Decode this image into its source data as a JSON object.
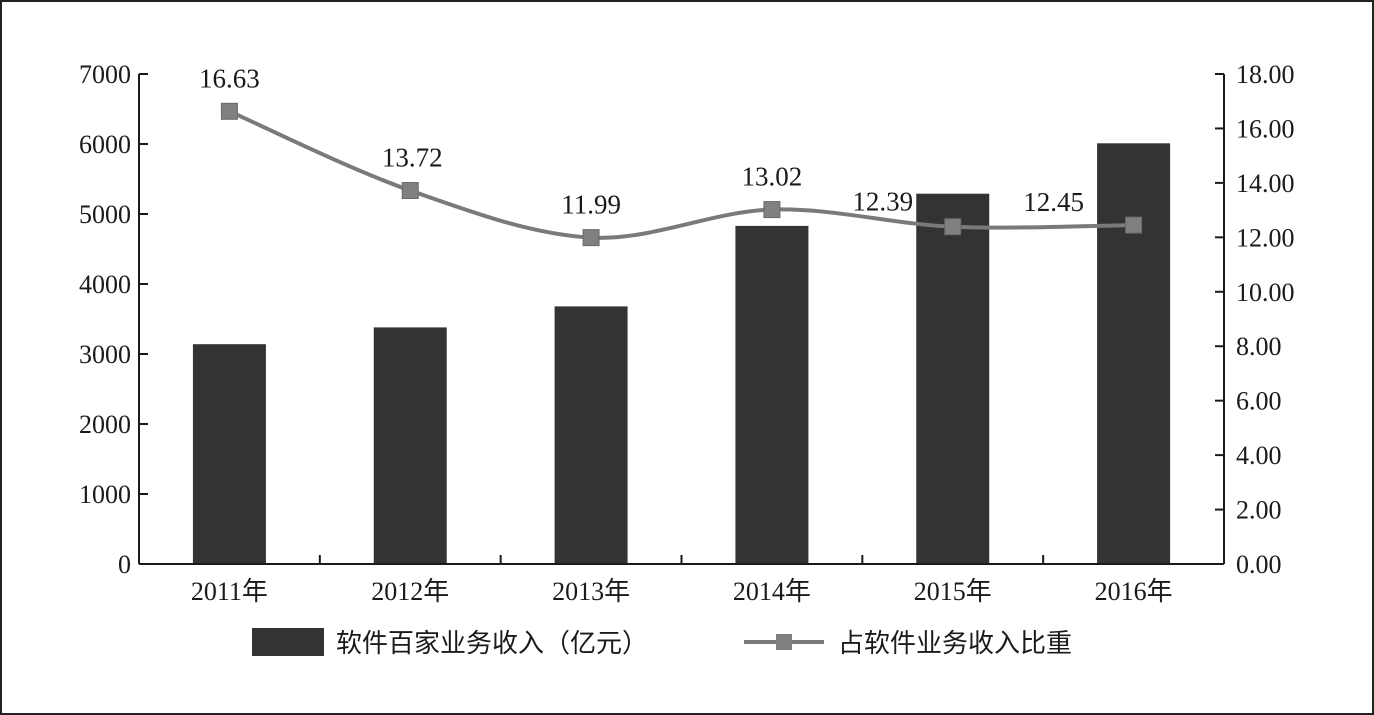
{
  "chart_data": {
    "type": "bar",
    "categories": [
      "2011年",
      "2012年",
      "2013年",
      "2014年",
      "2015年",
      "2016年"
    ],
    "series": [
      {
        "name": "软件百家业务收入（亿元）",
        "type": "bar",
        "axis": "left",
        "values": [
          3140,
          3380,
          3680,
          4830,
          5290,
          6010
        ]
      },
      {
        "name": "占软件业务收入比重",
        "type": "line",
        "axis": "right",
        "values": [
          16.63,
          13.72,
          11.99,
          13.02,
          12.39,
          12.45
        ],
        "labels": [
          "16.63",
          "13.72",
          "11.99",
          "13.02",
          "12.39",
          "12.45"
        ]
      }
    ],
    "y_left": {
      "min": 0,
      "max": 7000,
      "ticks": [
        0,
        1000,
        2000,
        3000,
        4000,
        5000,
        6000,
        7000
      ],
      "tick_labels": [
        "0",
        "1000",
        "2000",
        "3000",
        "4000",
        "5000",
        "6000",
        "7000"
      ]
    },
    "y_right": {
      "min": 0,
      "max": 18,
      "ticks": [
        0,
        2,
        4,
        6,
        8,
        10,
        12,
        14,
        16,
        18
      ],
      "tick_labels": [
        "0.00",
        "2.00",
        "4.00",
        "6.00",
        "8.00",
        "10.00",
        "12.00",
        "14.00",
        "16.00",
        "18.00"
      ]
    },
    "title": "",
    "xlabel": "",
    "ylabel": "",
    "grid": false,
    "legend_position": "bottom",
    "colors": {
      "bar": "#333333",
      "line": "#7a7a7a",
      "marker": "#808080",
      "axis": "#1a1a1a"
    }
  }
}
